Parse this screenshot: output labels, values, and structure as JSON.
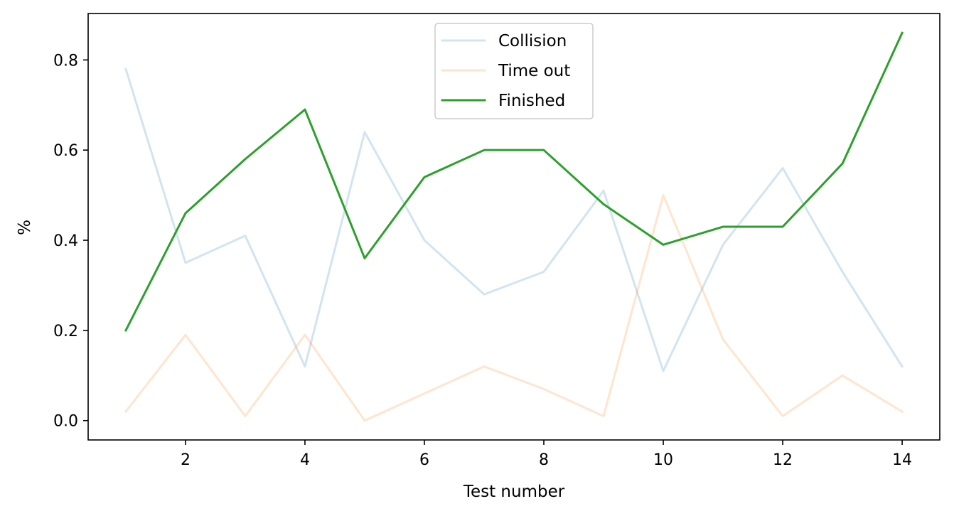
{
  "chart_data": {
    "type": "line",
    "title": "",
    "xlabel": "Test number",
    "ylabel": "%",
    "x": [
      1,
      2,
      3,
      4,
      5,
      6,
      7,
      8,
      9,
      10,
      11,
      12,
      13,
      14
    ],
    "xlim": [
      0.37,
      14.63
    ],
    "ylim": [
      -0.043,
      0.903
    ],
    "xticks": [
      2,
      4,
      6,
      8,
      10,
      12,
      14
    ],
    "yticks": [
      0.0,
      0.2,
      0.4,
      0.6,
      0.8
    ],
    "xtick_labels": [
      "2",
      "4",
      "6",
      "8",
      "10",
      "12",
      "14"
    ],
    "ytick_labels": [
      "0.0",
      "0.2",
      "0.4",
      "0.6",
      "0.8"
    ],
    "grid": false,
    "legend_position": "top-center",
    "series": [
      {
        "name": "Collision",
        "color": "#1f77b4",
        "opacity": 0.2,
        "values": [
          0.78,
          0.35,
          0.41,
          0.12,
          0.64,
          0.4,
          0.28,
          0.33,
          0.51,
          0.11,
          0.39,
          0.56,
          0.33,
          0.12
        ]
      },
      {
        "name": "Time out",
        "color": "#ff7f0e",
        "opacity": 0.2,
        "values": [
          0.02,
          0.19,
          0.01,
          0.19,
          0.0,
          0.06,
          0.12,
          0.07,
          0.01,
          0.5,
          0.18,
          0.01,
          0.1,
          0.02
        ]
      },
      {
        "name": "Finished",
        "color": "#2ca02c",
        "opacity": 1.0,
        "values": [
          0.2,
          0.46,
          0.58,
          0.69,
          0.36,
          0.54,
          0.6,
          0.6,
          0.48,
          0.39,
          0.43,
          0.43,
          0.57,
          0.86
        ]
      }
    ]
  }
}
